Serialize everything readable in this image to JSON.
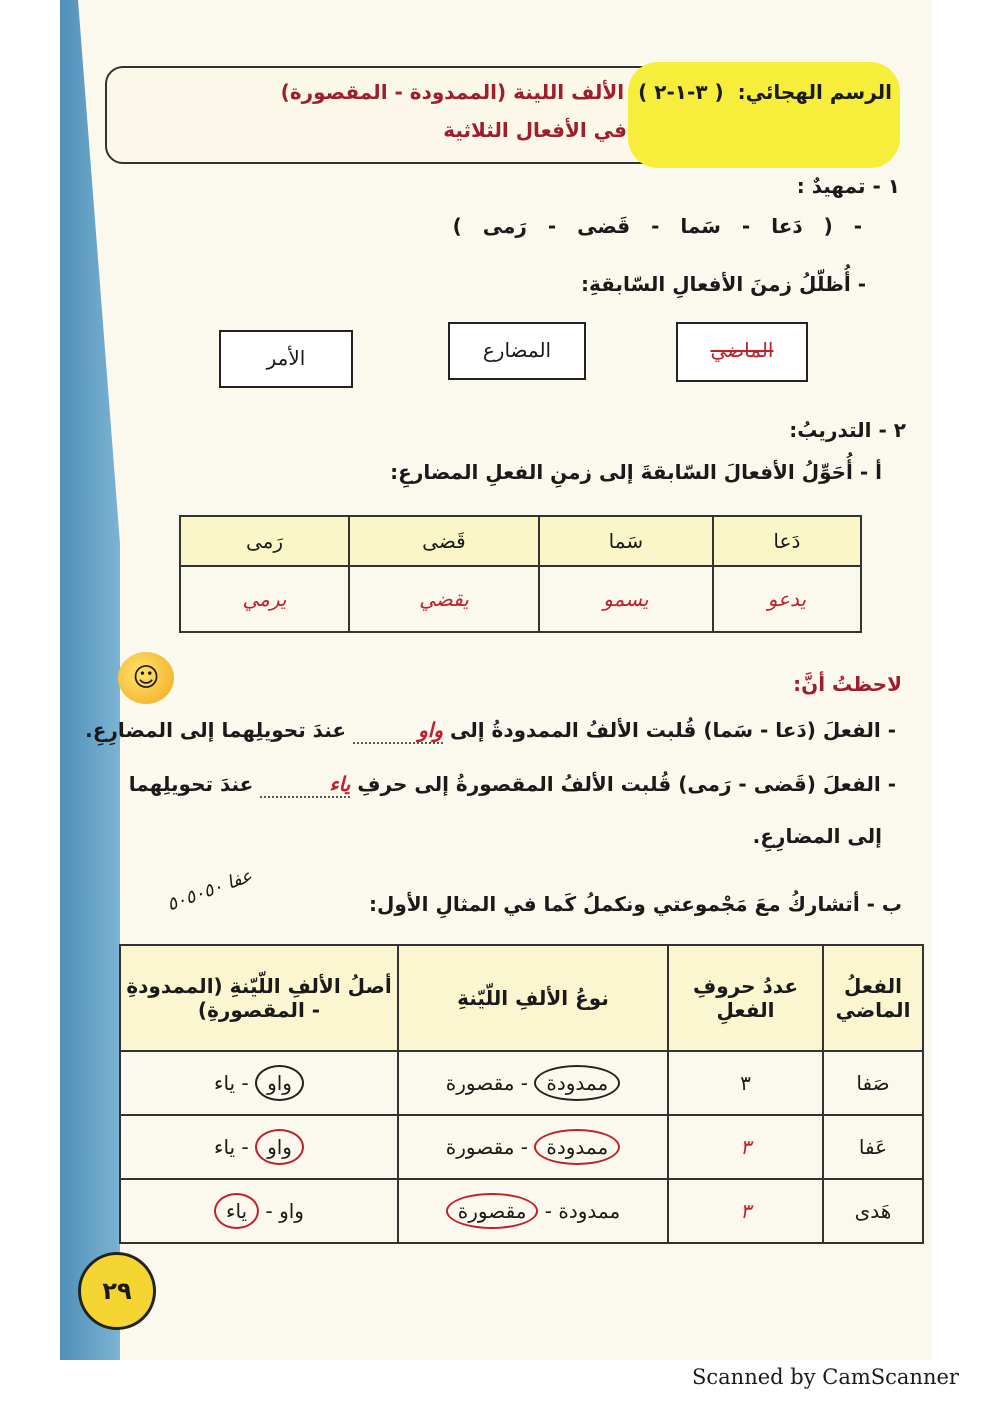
{
  "header": {
    "label": "الرسم الهجائي:",
    "code": "( ٣-١-٢ )",
    "title_line1": "الألف اللينة (الممدودة - المقصورة)",
    "title_line2": "في الأفعال الثلاثية"
  },
  "section1": {
    "heading": "١ - تمهيدٌ :",
    "verbs": "- ( دَعا   -   سَما   -   قَضى   -   رَمى )",
    "instruction": "- أُظلّلُ زمنَ الأفعالِ السّابقةِ:",
    "tenses": [
      {
        "label": "الماضي",
        "selected": true
      },
      {
        "label": "المضارع",
        "selected": false
      },
      {
        "label": "الأمر",
        "selected": false
      }
    ]
  },
  "section2": {
    "heading": "٢ - التدريبُ:",
    "instruction_a": "أ - أُحَوِّلُ الأفعالَ السّابقةَ إلى زمنِ الفعلِ المضارعِ:",
    "table_a": {
      "headers": [
        "دَعا",
        "سَما",
        "قَضى",
        "رَمى"
      ],
      "answers": [
        "يدعو",
        "يسمو",
        "يقضي",
        "يرمي"
      ]
    }
  },
  "note": {
    "heading": "لاحظتُ أنَّ:",
    "line1_pre": "- الفعلَ (دَعا - سَما) قُلبت الألفُ الممدودةُ إلى",
    "line1_answer": "واو",
    "line1_post": "عندَ تحويلِهما إلى المضارِعِ.",
    "line2_pre": "- الفعلَ (قَضى - رَمى) قُلبت الألفُ المقصورةُ إلى حرفِ",
    "line2_answer": "ياء",
    "line2_post": "عندَ تحويلِهما",
    "line3": "إلى المضارِعِ."
  },
  "section_b": {
    "instruction": "ب - أتشاركُ معَ مَجْموعتي ونكملُ كَما في المثالِ الأول:",
    "scribble": "عفا ٥٠٥٠٥٠",
    "headers": [
      "الفعلُ الماضي",
      "عددُ حروفِ الفعلِ",
      "نوعُ الألفِ اللّيّنةِ",
      "أصلُ الألفِ اللّيّنةِ (الممدودةِ - المقصورةِ)"
    ],
    "rows": [
      {
        "verb": "صَفا",
        "count": "٣",
        "type_a": "ممدودة",
        "type_b": "مقصورة",
        "origin_a": "واو",
        "origin_b": "ياء"
      },
      {
        "verb": "عَفا",
        "count": "٣",
        "type_a": "ممدودة",
        "type_b": "مقصورة",
        "origin_a": "واو",
        "origin_b": "ياء"
      },
      {
        "verb": "هَدى",
        "count": "٣",
        "type_a": "ممدودة",
        "type_b": "مقصورة",
        "origin_a": "واو",
        "origin_b": "ياء"
      }
    ]
  },
  "page_number": "٢٩",
  "footer": "Scanned by CamScanner",
  "colors": {
    "accent_red": "#a01d2b",
    "pen_red": "#c0202a",
    "highlight": "#f7ee3c",
    "strip_blue": "#4f8fb8"
  }
}
